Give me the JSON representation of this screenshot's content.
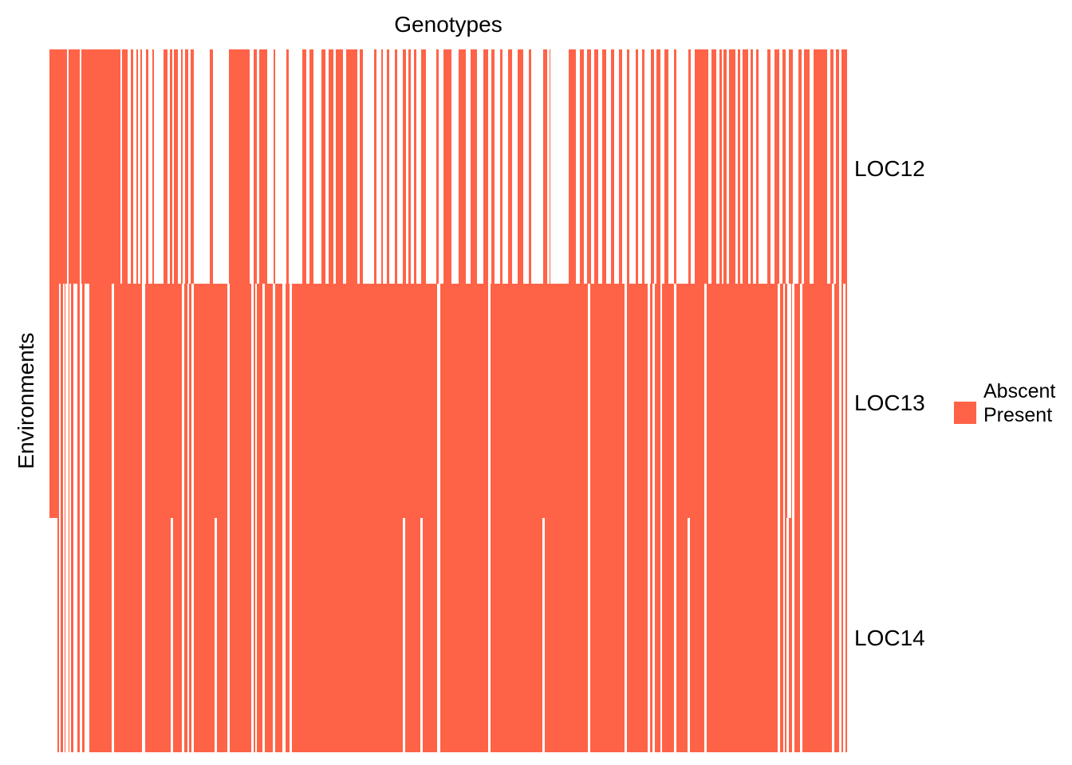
{
  "chart_data": {
    "type": "heatmap",
    "xlabel": "Genotypes",
    "ylabel": "Environments",
    "rows": [
      "LOC12",
      "LOC13",
      "LOC14"
    ],
    "legend": {
      "entries": [
        "Abscent",
        "Present"
      ]
    },
    "colors": {
      "present": "#FF6347",
      "absent": "#FFFFFF"
    },
    "grid": false,
    "present_intervals": {
      "LOC12": [
        [
          62,
          84
        ],
        [
          86,
          100
        ],
        [
          102,
          151
        ],
        [
          153,
          160
        ],
        [
          164,
          167
        ],
        [
          171,
          173
        ],
        [
          176,
          178
        ],
        [
          183,
          186
        ],
        [
          191,
          193
        ],
        [
          205,
          210
        ],
        [
          213,
          216
        ],
        [
          218,
          223
        ],
        [
          227,
          229
        ],
        [
          232,
          236
        ],
        [
          239,
          243
        ],
        [
          263,
          267
        ],
        [
          287,
          313
        ],
        [
          318,
          322
        ],
        [
          325,
          335
        ],
        [
          343,
          345
        ],
        [
          359,
          362
        ],
        [
          379,
          384
        ],
        [
          388,
          393
        ],
        [
          403,
          408
        ],
        [
          412,
          418
        ],
        [
          421,
          430
        ],
        [
          434,
          448
        ],
        [
          451,
          455
        ],
        [
          469,
          472
        ],
        [
          478,
          480
        ],
        [
          485,
          488
        ],
        [
          495,
          498
        ],
        [
          505,
          509
        ],
        [
          512,
          515
        ],
        [
          519,
          522
        ],
        [
          528,
          534
        ],
        [
          547,
          550
        ],
        [
          556,
          566
        ],
        [
          575,
          584
        ],
        [
          590,
          598
        ],
        [
          606,
          612
        ],
        [
          616,
          620
        ],
        [
          627,
          630
        ],
        [
          637,
          642
        ],
        [
          649,
          656
        ],
        [
          663,
          666
        ],
        [
          681,
          686
        ],
        [
          689,
          690
        ],
        [
          713,
          722
        ],
        [
          727,
          732
        ],
        [
          736,
          741
        ],
        [
          745,
          750
        ],
        [
          755,
          760
        ],
        [
          766,
          770
        ],
        [
          776,
          780
        ],
        [
          786,
          789
        ],
        [
          797,
          800
        ],
        [
          805,
          808
        ],
        [
          816,
          820
        ],
        [
          823,
          828
        ],
        [
          833,
          838
        ],
        [
          845,
          848
        ],
        [
          863,
          866
        ],
        [
          871,
          888
        ],
        [
          892,
          898
        ],
        [
          902,
          905
        ],
        [
          907,
          911
        ],
        [
          914,
          922
        ],
        [
          925,
          928
        ],
        [
          931,
          938
        ],
        [
          941,
          944
        ],
        [
          948,
          951
        ],
        [
          962,
          966
        ],
        [
          971,
          977
        ],
        [
          981,
          985
        ],
        [
          989,
          994
        ],
        [
          1001,
          1005
        ],
        [
          1008,
          1015
        ],
        [
          1020,
          1037
        ],
        [
          1041,
          1045
        ],
        [
          1048,
          1052
        ],
        [
          1055,
          1062
        ]
      ],
      "LOC13": [
        [
          62,
          74
        ],
        [
          76,
          79
        ],
        [
          81,
          82
        ],
        [
          86,
          87
        ],
        [
          89,
          92
        ],
        [
          97,
          100
        ],
        [
          103,
          106
        ],
        [
          112,
          140
        ],
        [
          143,
          178
        ],
        [
          182,
          228
        ],
        [
          231,
          235
        ],
        [
          237,
          240
        ],
        [
          243,
          285
        ],
        [
          288,
          315
        ],
        [
          318,
          320
        ],
        [
          322,
          329
        ],
        [
          332,
          342
        ],
        [
          345,
          354
        ],
        [
          358,
          363
        ],
        [
          366,
          548
        ],
        [
          552,
          612
        ],
        [
          615,
          737
        ],
        [
          740,
          783
        ],
        [
          786,
          812
        ],
        [
          815,
          818
        ],
        [
          821,
          828
        ],
        [
          830,
          845
        ],
        [
          848,
          883
        ],
        [
          886,
          975
        ],
        [
          978,
          982
        ],
        [
          984,
          987
        ],
        [
          992,
          993
        ],
        [
          996,
          1003
        ],
        [
          1006,
          1043
        ],
        [
          1046,
          1052
        ],
        [
          1055,
          1057
        ],
        [
          1060,
          1062
        ]
      ],
      "LOC14": [
        [
          72,
          74
        ],
        [
          76,
          79
        ],
        [
          81,
          82
        ],
        [
          86,
          87
        ],
        [
          89,
          92
        ],
        [
          97,
          100
        ],
        [
          103,
          106
        ],
        [
          112,
          140
        ],
        [
          143,
          178
        ],
        [
          182,
          214
        ],
        [
          217,
          228
        ],
        [
          231,
          235
        ],
        [
          237,
          240
        ],
        [
          243,
          269
        ],
        [
          272,
          285
        ],
        [
          288,
          315
        ],
        [
          318,
          320
        ],
        [
          322,
          329
        ],
        [
          332,
          342
        ],
        [
          345,
          354
        ],
        [
          358,
          363
        ],
        [
          366,
          505
        ],
        [
          508,
          527
        ],
        [
          530,
          548
        ],
        [
          552,
          612
        ],
        [
          615,
          680
        ],
        [
          683,
          737
        ],
        [
          740,
          783
        ],
        [
          786,
          812
        ],
        [
          815,
          818
        ],
        [
          821,
          828
        ],
        [
          830,
          845
        ],
        [
          848,
          862
        ],
        [
          865,
          883
        ],
        [
          886,
          975
        ],
        [
          978,
          982
        ],
        [
          984,
          986
        ],
        [
          989,
          993
        ],
        [
          996,
          1003
        ],
        [
          1006,
          1043
        ],
        [
          1046,
          1052
        ],
        [
          1055,
          1057
        ],
        [
          1060,
          1062
        ]
      ]
    }
  }
}
